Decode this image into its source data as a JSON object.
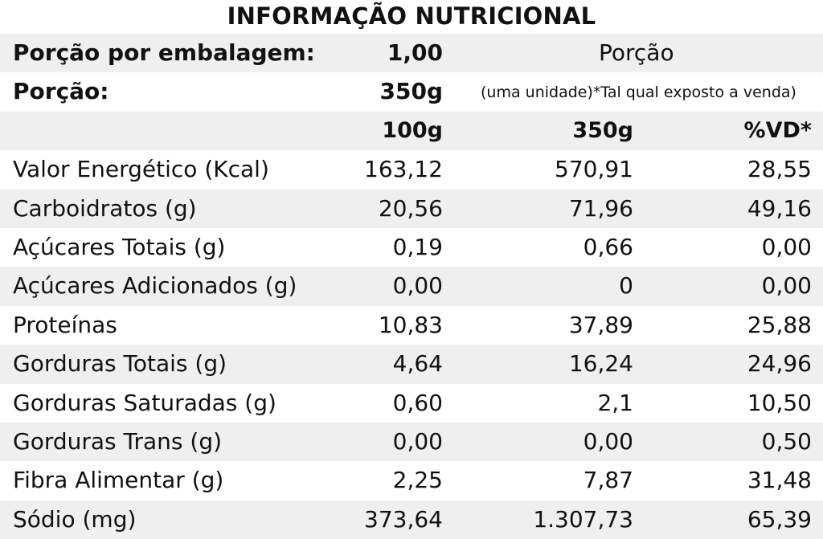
{
  "title": "INFORMAÇÃO NUTRICIONAL",
  "info": {
    "servings_label": "Porção por embalagem:",
    "servings_value": "1,00",
    "portion_header": "Porção",
    "portion_label": "Porção:",
    "portion_value": "350g",
    "portion_note": "(uma unidade)*Tal qual exposto a venda)"
  },
  "columns": {
    "c100": "100g",
    "c350": "350g",
    "vd": "%VD*"
  },
  "rows": [
    {
      "label": "Valor Energético (Kcal)",
      "c100": "163,12",
      "c350": "570,91",
      "vd": "28,55"
    },
    {
      "label": "Carboidratos (g)",
      "c100": "20,56",
      "c350": "71,96",
      "vd": "49,16"
    },
    {
      "label": "Açúcares Totais (g)",
      "c100": "0,19",
      "c350": "0,66",
      "vd": "0,00"
    },
    {
      "label": "Açúcares Adicionados (g)",
      "c100": "0,00",
      "c350": "0",
      "vd": "0,00"
    },
    {
      "label": "Proteínas",
      "c100": "10,83",
      "c350": "37,89",
      "vd": "25,88"
    },
    {
      "label": "Gorduras Totais (g)",
      "c100": "4,64",
      "c350": "16,24",
      "vd": "24,96"
    },
    {
      "label": "Gorduras Saturadas (g)",
      "c100": "0,60",
      "c350": "2,1",
      "vd": "10,50"
    },
    {
      "label": "Gorduras Trans (g)",
      "c100": "0,00",
      "c350": "0,00",
      "vd": "0,50"
    },
    {
      "label": "Fibra Alimentar (g)",
      "c100": "2,25",
      "c350": "7,87",
      "vd": "31,48"
    },
    {
      "label": "Sódio (mg)",
      "c100": "373,64",
      "c350": "1.307,73",
      "vd": "65,39"
    }
  ]
}
